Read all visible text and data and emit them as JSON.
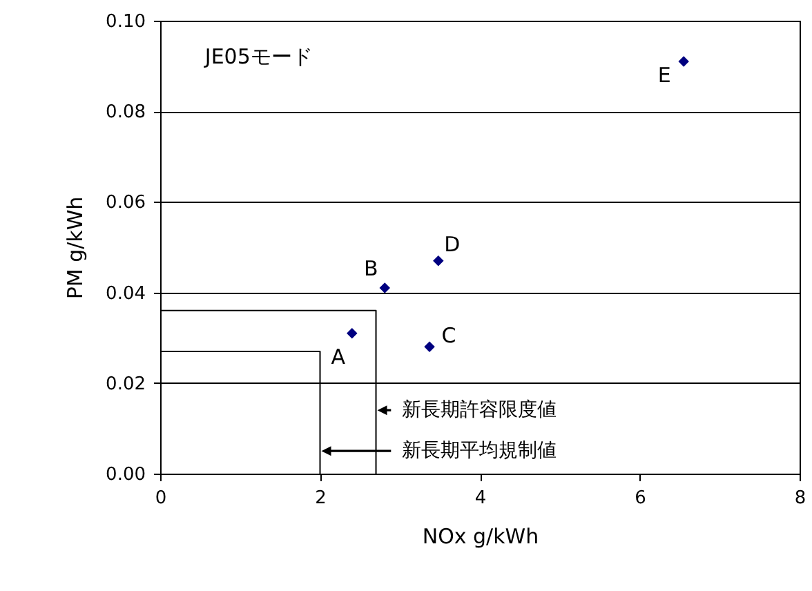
{
  "chart_data": {
    "type": "scatter",
    "xlabel": "NOx  g/kWh",
    "ylabel": "PM  g/kWh",
    "annotations": [
      "JE05モード"
    ],
    "xlim": [
      0,
      8
    ],
    "xticks": [
      0,
      2,
      4,
      6,
      8
    ],
    "ylim": [
      0,
      0.1
    ],
    "yticks": [
      {
        "value": 0,
        "label": "0.00"
      },
      {
        "value": 0.02,
        "label": "0.02"
      },
      {
        "value": 0.04,
        "label": "0.04"
      },
      {
        "value": 0.06,
        "label": "0.06"
      },
      {
        "value": 0.08,
        "label": "0.08"
      },
      {
        "value": 0.1,
        "label": "0.10"
      }
    ],
    "grid": "y",
    "marker": "diamond",
    "legend": "bottom",
    "series": [
      {
        "color": "#000080",
        "x": [
          2.4,
          2.81,
          3.37,
          3.48,
          6.55
        ],
        "values": [
          0.031,
          0.041,
          0.028,
          0.047,
          0.091
        ],
        "value_labels": [
          "A",
          "B",
          "C",
          "D",
          "E"
        ]
      },
      {
        "type": "line",
        "marker": "none",
        "name": "新長期許容限度値",
        "color": "#000000",
        "x": [
          0,
          2.7,
          2.7
        ],
        "values": [
          0.036,
          0.036,
          0
        ]
      },
      {
        "type": "line",
        "marker": "none",
        "name": "新長期平均規制値",
        "color": "#000000",
        "x": [
          0,
          2.0,
          2.0
        ],
        "values": [
          0.027,
          0.027,
          0
        ]
      }
    ]
  }
}
